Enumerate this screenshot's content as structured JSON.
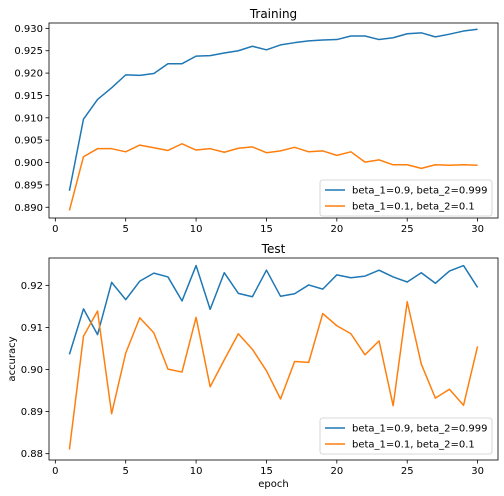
{
  "chart_data": [
    {
      "type": "line",
      "title": "Training",
      "xlabel": "",
      "ylabel": "",
      "xlim": [
        -0.45,
        31.45
      ],
      "ylim": [
        0.8876,
        0.9312
      ],
      "xticks": [
        0,
        5,
        10,
        15,
        20,
        25,
        30
      ],
      "yticks": [
        0.89,
        0.895,
        0.9,
        0.905,
        0.91,
        0.915,
        0.92,
        0.925,
        0.93
      ],
      "ytick_labels": [
        "0.890",
        "0.895",
        "0.900",
        "0.905",
        "0.910",
        "0.915",
        "0.920",
        "0.925",
        "0.930"
      ],
      "grid": false,
      "legend_position": "lower-right",
      "x": [
        1,
        2,
        3,
        4,
        5,
        6,
        7,
        8,
        9,
        10,
        11,
        12,
        13,
        14,
        15,
        16,
        17,
        18,
        19,
        20,
        21,
        22,
        23,
        24,
        25,
        26,
        27,
        28,
        29,
        30
      ],
      "series": [
        {
          "name": "beta_1=0.9, beta_2=0.999",
          "color": "#1f77b4",
          "values": [
            0.8937,
            0.9097,
            0.9141,
            0.9167,
            0.9196,
            0.9195,
            0.9199,
            0.9221,
            0.9221,
            0.9238,
            0.9239,
            0.9245,
            0.925,
            0.926,
            0.9252,
            0.9263,
            0.9268,
            0.9272,
            0.9274,
            0.9275,
            0.9283,
            0.9283,
            0.9275,
            0.9279,
            0.9288,
            0.929,
            0.9281,
            0.9287,
            0.9294,
            0.9298
          ]
        },
        {
          "name": "beta_1=0.1, beta_2=0.1",
          "color": "#ff7f0e",
          "values": [
            0.8893,
            0.9013,
            0.9031,
            0.9031,
            0.9024,
            0.9039,
            0.9033,
            0.9027,
            0.9042,
            0.9028,
            0.9031,
            0.9023,
            0.9032,
            0.9035,
            0.9022,
            0.9026,
            0.9034,
            0.9024,
            0.9026,
            0.9016,
            0.9024,
            0.9001,
            0.9006,
            0.8995,
            0.8995,
            0.8987,
            0.8995,
            0.8994,
            0.8995,
            0.8994
          ]
        }
      ]
    },
    {
      "type": "line",
      "title": "Test",
      "xlabel": "epoch",
      "ylabel": "accuracy",
      "xlim": [
        -0.45,
        31.45
      ],
      "ylim": [
        0.8785,
        0.9265
      ],
      "xticks": [
        0,
        5,
        10,
        15,
        20,
        25,
        30
      ],
      "yticks": [
        0.88,
        0.89,
        0.9,
        0.91,
        0.92
      ],
      "ytick_labels": [
        "0.88",
        "0.89",
        "0.90",
        "0.91",
        "0.92"
      ],
      "grid": false,
      "legend_position": "lower-right",
      "x": [
        1,
        2,
        3,
        4,
        5,
        6,
        7,
        8,
        9,
        10,
        11,
        12,
        13,
        14,
        15,
        16,
        17,
        18,
        19,
        20,
        21,
        22,
        23,
        24,
        25,
        26,
        27,
        28,
        29,
        30
      ],
      "series": [
        {
          "name": "beta_1=0.9, beta_2=0.999",
          "color": "#1f77b4",
          "values": [
            0.9036,
            0.9144,
            0.9083,
            0.9207,
            0.9166,
            0.921,
            0.9229,
            0.922,
            0.9163,
            0.9247,
            0.9143,
            0.923,
            0.9181,
            0.9173,
            0.9236,
            0.9174,
            0.918,
            0.9201,
            0.9191,
            0.9225,
            0.9218,
            0.9222,
            0.9236,
            0.922,
            0.9208,
            0.923,
            0.9205,
            0.9234,
            0.9247,
            0.9195
          ]
        },
        {
          "name": "beta_1=0.1, beta_2=0.1",
          "color": "#ff7f0e",
          "values": [
            0.881,
            0.9079,
            0.9139,
            0.8895,
            0.9039,
            0.9123,
            0.9087,
            0.9001,
            0.8994,
            0.9124,
            0.8959,
            0.9023,
            0.9085,
            0.9048,
            0.8997,
            0.893,
            0.9019,
            0.9017,
            0.9133,
            0.9104,
            0.9085,
            0.9035,
            0.9068,
            0.8914,
            0.9161,
            0.9013,
            0.8932,
            0.8953,
            0.8915,
            0.9055
          ]
        }
      ]
    }
  ]
}
